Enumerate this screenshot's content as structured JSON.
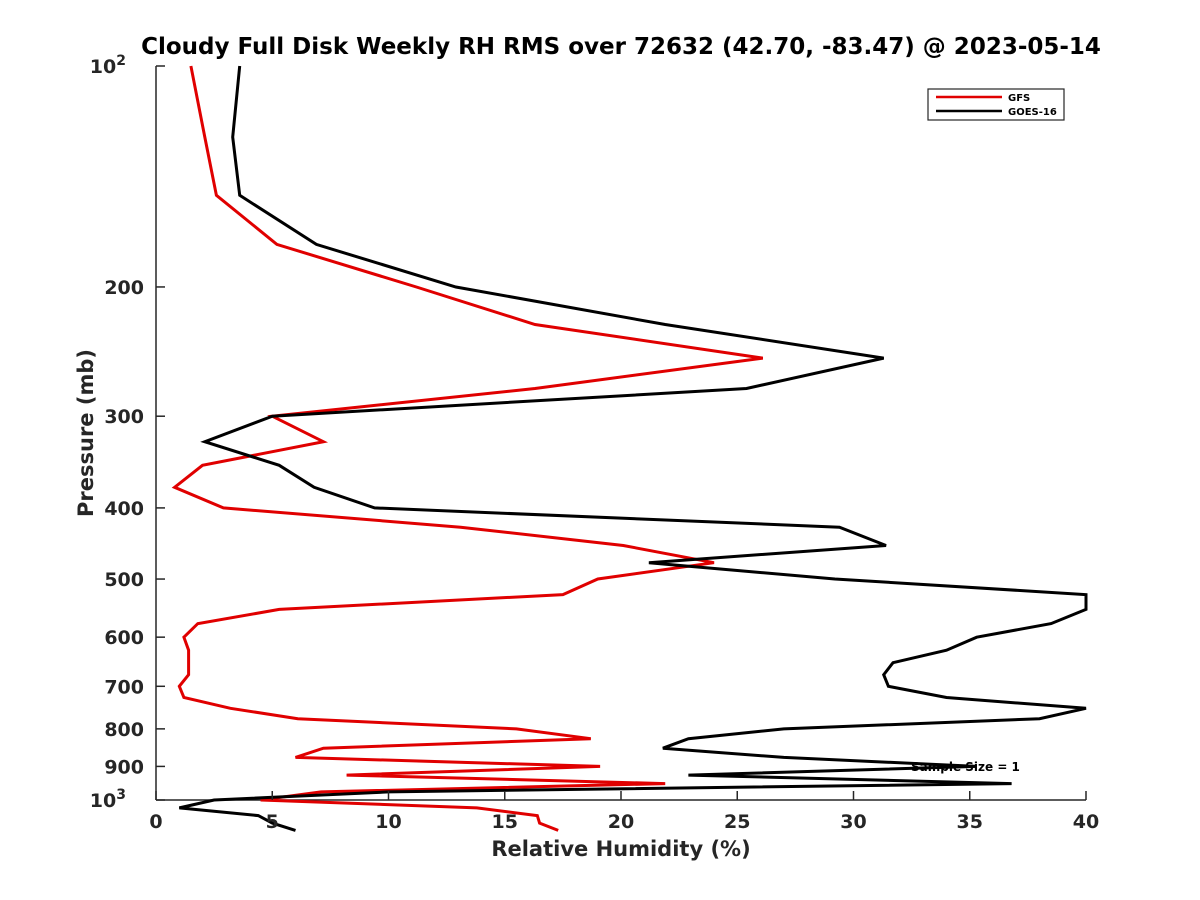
{
  "chart_data": {
    "type": "line",
    "title": "Cloudy Full Disk Weekly RH RMS over 72632 (42.70, -83.47) @ 2023-05-14",
    "xlabel": "Relative Humidity (%)",
    "ylabel": "Pressure (mb)",
    "xlim": [
      0,
      40
    ],
    "ylim": [
      100,
      1000
    ],
    "yscale": "log",
    "y_reversed": true,
    "xticks": [
      0,
      5,
      10,
      15,
      20,
      25,
      30,
      35,
      40
    ],
    "xtick_labels": [
      "0",
      "5",
      "10",
      "15",
      "20",
      "25",
      "30",
      "35",
      "40"
    ],
    "yticks": [
      100,
      200,
      300,
      400,
      500,
      600,
      700,
      800,
      900,
      1000
    ],
    "ytick_labels": [
      {
        "base": "10",
        "exp": "2"
      },
      {
        "base": "200",
        "exp": ""
      },
      {
        "base": "300",
        "exp": ""
      },
      {
        "base": "400",
        "exp": ""
      },
      {
        "base": "500",
        "exp": ""
      },
      {
        "base": "600",
        "exp": ""
      },
      {
        "base": "700",
        "exp": ""
      },
      {
        "base": "800",
        "exp": ""
      },
      {
        "base": "900",
        "exp": ""
      },
      {
        "base": "10",
        "exp": "3"
      }
    ],
    "grid": false,
    "legend_position": "top-right",
    "annotation": "Sample Size = 1",
    "series": [
      {
        "name": "GFS",
        "color": "#e00000",
        "points": [
          [
            1.5,
            100
          ],
          [
            2.1,
            125
          ],
          [
            2.6,
            150
          ],
          [
            5.2,
            175
          ],
          [
            11.2,
            200
          ],
          [
            16.3,
            225
          ],
          [
            26.1,
            250
          ],
          [
            16.3,
            275
          ],
          [
            5.0,
            300
          ],
          [
            7.2,
            325
          ],
          [
            2.0,
            350
          ],
          [
            0.8,
            375
          ],
          [
            2.9,
            400
          ],
          [
            13.1,
            425
          ],
          [
            20.1,
            450
          ],
          [
            24.0,
            475
          ],
          [
            19.0,
            500
          ],
          [
            17.5,
            525
          ],
          [
            5.3,
            550
          ],
          [
            1.8,
            575
          ],
          [
            1.2,
            600
          ],
          [
            1.4,
            625
          ],
          [
            1.4,
            650
          ],
          [
            1.4,
            675
          ],
          [
            1.0,
            700
          ],
          [
            1.2,
            725
          ],
          [
            3.2,
            750
          ],
          [
            6.1,
            775
          ],
          [
            15.5,
            800
          ],
          [
            18.7,
            825
          ],
          [
            7.2,
            850
          ],
          [
            6.0,
            875
          ],
          [
            19.1,
            900
          ],
          [
            8.2,
            925
          ],
          [
            21.9,
            950
          ],
          [
            7.1,
            975
          ],
          [
            4.5,
            1000
          ],
          [
            13.8,
            1025
          ],
          [
            16.4,
            1050
          ],
          [
            16.5,
            1075
          ],
          [
            17.3,
            1100
          ]
        ]
      },
      {
        "name": "GOES-16",
        "color": "#000000",
        "points": [
          [
            3.6,
            100
          ],
          [
            3.3,
            125
          ],
          [
            3.6,
            150
          ],
          [
            6.9,
            175
          ],
          [
            12.9,
            200
          ],
          [
            21.9,
            225
          ],
          [
            31.3,
            250
          ],
          [
            25.4,
            275
          ],
          [
            5.0,
            300
          ],
          [
            2.1,
            325
          ],
          [
            5.3,
            350
          ],
          [
            6.8,
            375
          ],
          [
            9.4,
            400
          ],
          [
            29.4,
            425
          ],
          [
            31.4,
            450
          ],
          [
            21.2,
            475
          ],
          [
            29.2,
            500
          ],
          [
            40.0,
            525
          ],
          [
            40.0,
            550
          ],
          [
            38.5,
            575
          ],
          [
            35.3,
            600
          ],
          [
            34.0,
            625
          ],
          [
            31.7,
            650
          ],
          [
            31.3,
            675
          ],
          [
            31.5,
            700
          ],
          [
            34.0,
            725
          ],
          [
            40.0,
            750
          ],
          [
            38.0,
            775
          ],
          [
            27.0,
            800
          ],
          [
            22.9,
            825
          ],
          [
            21.8,
            850
          ],
          [
            27.0,
            875
          ],
          [
            35.3,
            900
          ],
          [
            22.9,
            925
          ],
          [
            36.8,
            950
          ],
          [
            10.0,
            975
          ],
          [
            2.5,
            1000
          ],
          [
            1.0,
            1025
          ],
          [
            4.4,
            1050
          ],
          [
            5.0,
            1075
          ],
          [
            6.0,
            1100
          ]
        ]
      }
    ]
  }
}
